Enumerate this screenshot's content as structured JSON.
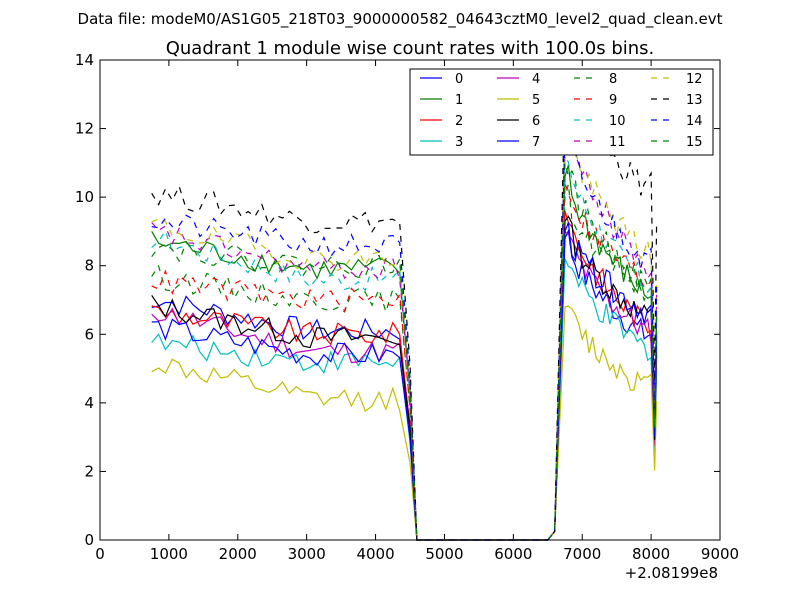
{
  "chart_data": {
    "type": "line",
    "suptitle": "Data file: modeM0/AS1G05_218T03_9000000582_04643cztM0_level2_quad_clean.evt",
    "title": "Quadrant 1 module wise count rates with 100.0s bins.",
    "xlabel": "",
    "ylabel": "",
    "x_offset_label": "+2.08199e8",
    "xlim": [
      0,
      9000
    ],
    "ylim": [
      0,
      14
    ],
    "xticks": [
      0,
      1000,
      2000,
      3000,
      4000,
      5000,
      6000,
      7000,
      8000,
      9000
    ],
    "yticks": [
      0,
      2,
      4,
      6,
      8,
      10,
      12,
      14
    ],
    "legend_position": "top-right",
    "gap_interval": [
      4600,
      6600
    ],
    "series": [
      {
        "name": "0",
        "color": "#0000ff",
        "dash": "solid",
        "base": 6.1,
        "peak": 8.8,
        "end": 6.0
      },
      {
        "name": "1",
        "color": "#008000",
        "dash": "solid",
        "base": 7.9,
        "peak": 10.6,
        "end": 7.2
      },
      {
        "name": "2",
        "color": "#ff0000",
        "dash": "solid",
        "base": 6.0,
        "peak": 9.6,
        "end": 6.3
      },
      {
        "name": "3",
        "color": "#00bfbf",
        "dash": "solid",
        "base": 5.2,
        "peak": 8.2,
        "end": 5.6
      },
      {
        "name": "4",
        "color": "#bf00bf",
        "dash": "solid",
        "base": 5.5,
        "peak": 9.0,
        "end": 6.1
      },
      {
        "name": "5",
        "color": "#bfbf00",
        "dash": "solid",
        "base": 4.1,
        "peak": 6.8,
        "end": 4.5
      },
      {
        "name": "6",
        "color": "#000000",
        "dash": "solid",
        "base": 5.9,
        "peak": 9.3,
        "end": 6.5
      },
      {
        "name": "7",
        "color": "#0000ff",
        "dash": "solid",
        "base": 5.4,
        "peak": 9.0,
        "end": 6.7
      },
      {
        "name": "8",
        "color": "#008000",
        "dash": "dashed",
        "base": 7.0,
        "peak": 10.0,
        "end": 7.3
      },
      {
        "name": "9",
        "color": "#ff0000",
        "dash": "dashed",
        "base": 7.0,
        "peak": 10.4,
        "end": 7.6
      },
      {
        "name": "10",
        "color": "#00bfbf",
        "dash": "dashed",
        "base": 7.6,
        "peak": 11.2,
        "end": 7.5
      },
      {
        "name": "11",
        "color": "#bf00bf",
        "dash": "dashed",
        "base": 7.9,
        "peak": 12.2,
        "end": 8.0
      },
      {
        "name": "12",
        "color": "#bfbf00",
        "dash": "dashed",
        "base": 8.2,
        "peak": 12.0,
        "end": 8.4
      },
      {
        "name": "13",
        "color": "#000000",
        "dash": "dashed",
        "base": 9.3,
        "peak": 13.4,
        "end": 10.3
      },
      {
        "name": "14",
        "color": "#0000ff",
        "dash": "dashed",
        "base": 8.6,
        "peak": 11.8,
        "end": 8.2
      },
      {
        "name": "15",
        "color": "#008000",
        "dash": "dashed",
        "base": 8.0,
        "peak": 11.0,
        "end": 7.4
      }
    ]
  }
}
